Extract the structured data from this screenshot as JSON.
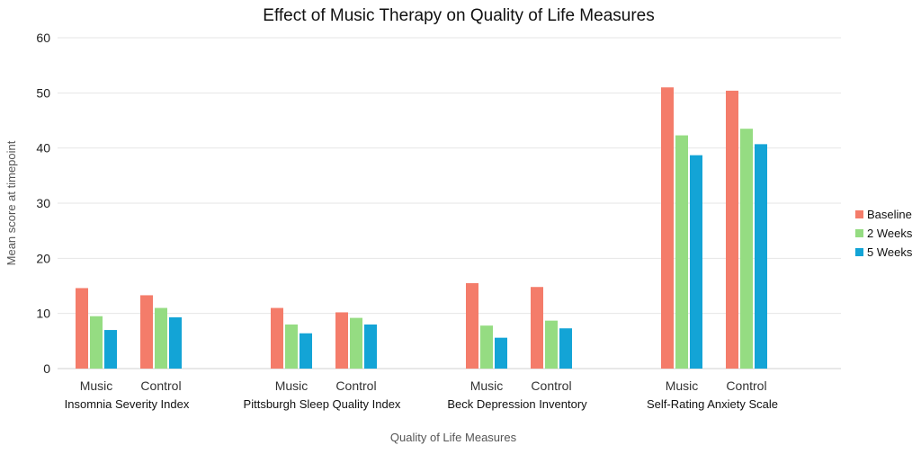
{
  "chart_data": {
    "type": "bar",
    "title": "Effect of Music Therapy on Quality of Life Measures",
    "xlabel": "Quality of Life Measures",
    "ylabel": "Mean score at timepoint",
    "ylim": [
      0,
      60
    ],
    "yticks": [
      0,
      10,
      20,
      30,
      40,
      50,
      60
    ],
    "grid": true,
    "legend_position": "right",
    "groups": [
      "Insomnia Severity Index",
      "Pittsburgh Sleep Quality Index",
      "Beck Depression Inventory",
      "Self-Rating Anxiety Scale"
    ],
    "subcategories": [
      "Music",
      "Control"
    ],
    "series": [
      {
        "name": "Baseline",
        "color": "#f47c6a",
        "values": [
          [
            14.6,
            13.3
          ],
          [
            11.0,
            10.2
          ],
          [
            15.5,
            14.8
          ],
          [
            51.0,
            50.4
          ]
        ]
      },
      {
        "name": "2 Weeks",
        "color": "#95dc82",
        "values": [
          [
            9.5,
            11.0
          ],
          [
            8.0,
            9.2
          ],
          [
            7.8,
            8.7
          ],
          [
            42.3,
            43.5
          ]
        ]
      },
      {
        "name": "5 Weeks",
        "color": "#13a4d6",
        "values": [
          [
            7.0,
            9.3
          ],
          [
            6.4,
            8.0
          ],
          [
            5.6,
            7.3
          ],
          [
            38.7,
            40.7
          ]
        ]
      }
    ]
  }
}
